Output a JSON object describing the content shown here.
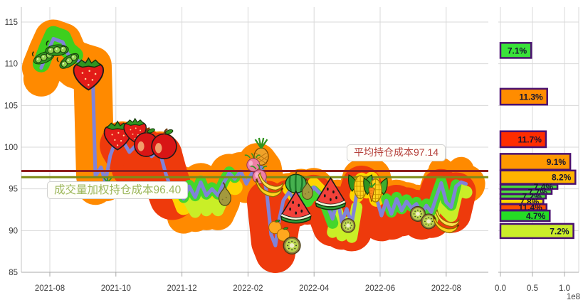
{
  "chart_data": [
    {
      "id": "price-history",
      "type": "line",
      "x_ticks": [
        "2021-08",
        "2021-10",
        "2021-12",
        "2022-02",
        "2022-04",
        "2022-06",
        "2022-08"
      ],
      "y_ticks": [
        85,
        90,
        95,
        100,
        105,
        110,
        115
      ],
      "ylim": [
        83.5,
        116.8
      ],
      "grid": true,
      "series": [
        {
          "name": "price",
          "color": "#8083d8",
          "points": [
            [
              -0.26,
              109.5
            ],
            [
              -0.06,
              111.5
            ],
            [
              0.11,
              113.0
            ],
            [
              0.39,
              112.6
            ],
            [
              0.54,
              111.2
            ],
            [
              0.75,
              110.5
            ],
            [
              1.03,
              110.1
            ],
            [
              1.29,
              109.8
            ],
            [
              1.38,
              96.5
            ],
            [
              1.55,
              97.6
            ],
            [
              1.68,
              95.8
            ],
            [
              1.83,
              99.0
            ],
            [
              1.98,
              100.6
            ],
            [
              2.2,
              100.8
            ],
            [
              2.41,
              99.4
            ],
            [
              2.63,
              100.3
            ],
            [
              2.87,
              100.0
            ],
            [
              3.08,
              98.9
            ],
            [
              3.32,
              99.6
            ],
            [
              3.51,
              96.8
            ],
            [
              3.71,
              94.6
            ],
            [
              3.88,
              95.6
            ],
            [
              4.05,
              93.8
            ],
            [
              4.22,
              95.3
            ],
            [
              4.4,
              94.0
            ],
            [
              4.57,
              95.8
            ],
            [
              4.74,
              94.2
            ],
            [
              4.91,
              95.0
            ],
            [
              5.09,
              94.2
            ],
            [
              5.26,
              95.7
            ],
            [
              5.43,
              96.9
            ],
            [
              5.6,
              96.2
            ],
            [
              5.78,
              97.1
            ],
            [
              5.95,
              95.6
            ],
            [
              6.12,
              96.9
            ],
            [
              6.29,
              98.2
            ],
            [
              6.44,
              97.4
            ],
            [
              6.57,
              94.5
            ],
            [
              6.7,
              89.5
            ],
            [
              6.83,
              88.2
            ],
            [
              6.94,
              91.2
            ],
            [
              7.07,
              93.6
            ],
            [
              7.24,
              94.6
            ],
            [
              7.41,
              93.7
            ],
            [
              7.61,
              95.1
            ],
            [
              7.8,
              94.0
            ],
            [
              7.99,
              95.2
            ],
            [
              8.19,
              94.4
            ],
            [
              8.38,
              93.3
            ],
            [
              8.56,
              91.4
            ],
            [
              8.71,
              93.8
            ],
            [
              8.84,
              91.0
            ],
            [
              8.99,
              92.6
            ],
            [
              9.14,
              90.8
            ],
            [
              9.29,
              94.4
            ],
            [
              9.44,
              96.3
            ],
            [
              9.59,
              94.9
            ],
            [
              9.74,
              96.4
            ],
            [
              9.89,
              93.9
            ],
            [
              10.04,
              91.8
            ],
            [
              10.19,
              93.6
            ],
            [
              10.34,
              92.0
            ],
            [
              10.5,
              93.8
            ],
            [
              10.65,
              92.4
            ],
            [
              10.8,
              93.5
            ],
            [
              10.95,
              92.7
            ],
            [
              11.1,
              93.2
            ],
            [
              11.25,
              92.0
            ],
            [
              11.4,
              93.0
            ],
            [
              11.55,
              92.2
            ],
            [
              11.7,
              94.0
            ],
            [
              11.85,
              95.7
            ],
            [
              12.0,
              93.4
            ],
            [
              12.15,
              92.8
            ],
            [
              12.3,
              95.3
            ],
            [
              12.45,
              95.8
            ],
            [
              12.6,
              95.6
            ]
          ]
        }
      ],
      "cost_lines": [
        {
          "name": "average-holding-cost",
          "label": "平均持仓成本97.14",
          "value": 97.14,
          "line_color": "#8e1f1f",
          "text_color": "#b5413a"
        },
        {
          "name": "vwap-holding-cost",
          "label": "成交量加权持仓成本96.40",
          "value": 96.4,
          "line_color": "#7c8b17",
          "text_color": "#9cb75a"
        }
      ]
    },
    {
      "id": "volume-by-price",
      "type": "bar",
      "orientation": "horizontal",
      "x_ticks": [
        "0.0",
        "0.5",
        "1.0"
      ],
      "x_scale_note": "1e8",
      "border_color": "#4a1070",
      "bars": [
        {
          "label": "7.1%",
          "value": 0.48,
          "p_hi": 112.5,
          "p_lo": 110.7,
          "color": "#3ae23a"
        },
        {
          "label": "11.3%",
          "value": 0.73,
          "p_hi": 107.0,
          "p_lo": 105.1,
          "color": "#ff8c00"
        },
        {
          "label": "11.7%",
          "value": 0.71,
          "p_hi": 101.9,
          "p_lo": 100.0,
          "color": "#ff2d00"
        },
        {
          "label": "9.1%",
          "value": 1.09,
          "p_hi": 99.2,
          "p_lo": 97.3,
          "color": "#ff9800"
        },
        {
          "label": "8.2%",
          "value": 1.17,
          "p_hi": 97.2,
          "p_lo": 95.6,
          "color": "#ffb300"
        },
        {
          "label": "7.4%",
          "value": 0.89,
          "p_hi": 95.5,
          "p_lo": 95.0,
          "color": "#4ade3a"
        },
        {
          "label": "7.7%",
          "value": 0.8,
          "p_hi": 94.9,
          "p_lo": 94.4,
          "color": "#53e03c"
        },
        {
          "label": "7.2%",
          "value": 0.71,
          "p_hi": 94.35,
          "p_lo": 93.85,
          "color": "#4ade3a"
        },
        {
          "label": "7.8%",
          "value": 0.67,
          "p_hi": 93.8,
          "p_lo": 93.2,
          "color": "#ffd900"
        },
        {
          "label": "11.4%",
          "value": 0.72,
          "p_hi": 93.15,
          "p_lo": 92.45,
          "color": "#ff4f00"
        },
        {
          "label": "4.7%",
          "value": 0.77,
          "p_hi": 92.4,
          "p_lo": 91.15,
          "color": "#25dc25"
        },
        {
          "label": "7.2%",
          "value": 1.14,
          "p_hi": 90.8,
          "p_lo": 89.1,
          "color": "#cbec2a"
        }
      ]
    }
  ],
  "decor": {
    "halo_strokes": [
      {
        "color": "#ff8a00",
        "width": 54,
        "dp": 0,
        "m0": -0.3,
        "m1": 12.62
      },
      {
        "color": "#ff8a00",
        "width": 50,
        "dp": -1.3,
        "m0": -0.3,
        "m1": 1.5
      },
      {
        "color": "#ff8a00",
        "width": 40,
        "dp": -1.4,
        "m0": 3.9,
        "m1": 5.4
      },
      {
        "color": "#ff8a00",
        "width": 46,
        "dp": -2.2,
        "m0": 3.9,
        "m1": 5.35
      },
      {
        "color": "#ff8a00",
        "width": 36,
        "dp": 1.5,
        "m0": 11.8,
        "m1": 12.5
      },
      {
        "color": "#ee3a0c",
        "width": 64,
        "dp": -0.6,
        "m0": 2.15,
        "m1": 3.75
      },
      {
        "color": "#ee3a0c",
        "width": 50,
        "dp": -2.0,
        "m0": 2.3,
        "m1": 3.7
      },
      {
        "color": "#ee3a0c",
        "width": 40,
        "dp": -3.1,
        "m0": 2.5,
        "m1": 3.6
      },
      {
        "color": "#ee3a0c",
        "width": 56,
        "dp": -0.9,
        "m0": 6.5,
        "m1": 9.7
      },
      {
        "color": "#ee3a0c",
        "width": 56,
        "dp": -0.7,
        "m0": 9.95,
        "m1": 12.4
      },
      {
        "color": "#ffd400",
        "width": 22,
        "dp": -1.0,
        "m0": 3.85,
        "m1": 5.65
      },
      {
        "color": "#ffd400",
        "width": 18,
        "dp": 0.4,
        "m0": 7.15,
        "m1": 8.35
      },
      {
        "color": "#ffd400",
        "width": 20,
        "dp": -0.2,
        "m0": 9.2,
        "m1": 10.0
      },
      {
        "color": "#c9ef27",
        "width": 16,
        "dp": -1.8,
        "m0": 4.2,
        "m1": 5.3
      },
      {
        "color": "#c9ef27",
        "width": 16,
        "dp": -1.6,
        "m0": 8.5,
        "m1": 9.3
      },
      {
        "color": "#c9ef27",
        "width": 18,
        "dp": -1.0,
        "m0": 11.5,
        "m1": 12.62
      },
      {
        "color": "#3ecf1e",
        "width": 24,
        "dp": 0.5,
        "m0": -0.3,
        "m1": 0.75
      },
      {
        "color": "#44d62c",
        "width": 15,
        "dp": 0.15,
        "m0": 3.95,
        "m1": 5.6
      },
      {
        "color": "#44d62c",
        "width": 16,
        "dp": -0.5,
        "m0": 7.55,
        "m1": 8.65
      },
      {
        "color": "#44d62c",
        "width": 15,
        "dp": 0.2,
        "m0": 10.15,
        "m1": 12.3
      }
    ],
    "fruits": [
      {
        "name": "pea-pod",
        "m": -0.18,
        "p": 110.8,
        "s": 36,
        "rot": -10
      },
      {
        "name": "pea-pod",
        "m": 0.22,
        "p": 111.7,
        "s": 38,
        "rot": 8
      },
      {
        "name": "pea-pod",
        "m": 0.58,
        "p": 110.4,
        "s": 36,
        "rot": -22
      },
      {
        "name": "strawberry",
        "m": 1.17,
        "p": 108.9,
        "s": 56
      },
      {
        "name": "strawberry",
        "m": 2.05,
        "p": 101.5,
        "s": 50
      },
      {
        "name": "strawberry",
        "m": 2.58,
        "p": 102.1,
        "s": 42
      },
      {
        "name": "apple",
        "m": 2.92,
        "p": 100.6,
        "s": 46
      },
      {
        "name": "apple",
        "m": 3.46,
        "p": 100.4,
        "s": 48
      },
      {
        "name": "carrot",
        "m": 1.75,
        "p": 95.2,
        "s": 30
      },
      {
        "name": "pear",
        "m": 5.3,
        "p": 94.3,
        "s": 38
      },
      {
        "name": "pineapple",
        "m": 6.4,
        "p": 99.5,
        "s": 42
      },
      {
        "name": "radish",
        "m": 6.16,
        "p": 98.0,
        "s": 30
      },
      {
        "name": "radish",
        "m": 6.35,
        "p": 96.6,
        "s": 32
      },
      {
        "name": "banana",
        "m": 6.65,
        "p": 95.6,
        "s": 44
      },
      {
        "name": "watermelon-whole",
        "m": 7.45,
        "p": 95.8,
        "s": 40
      },
      {
        "name": "pear",
        "m": 7.8,
        "p": 94.9,
        "s": 34
      },
      {
        "name": "watermelon-slice",
        "m": 7.45,
        "p": 92.8,
        "s": 54
      },
      {
        "name": "watermelon-slice",
        "m": 8.5,
        "p": 94.4,
        "s": 54
      },
      {
        "name": "tangerine",
        "m": 6.82,
        "p": 90.5,
        "s": 28
      },
      {
        "name": "tangerine",
        "m": 7.07,
        "p": 89.6,
        "s": 28
      },
      {
        "name": "kiwi",
        "m": 7.33,
        "p": 88.2,
        "s": 34
      },
      {
        "name": "kiwi",
        "m": 9.03,
        "p": 90.6,
        "s": 28
      },
      {
        "name": "corn",
        "m": 9.4,
        "p": 95.3,
        "s": 46
      },
      {
        "name": "corn",
        "m": 9.86,
        "p": 94.9,
        "s": 46
      },
      {
        "name": "carrot",
        "m": 9.74,
        "p": 94.6,
        "s": 30
      },
      {
        "name": "kiwi",
        "m": 11.14,
        "p": 92.0,
        "s": 30
      },
      {
        "name": "kiwi",
        "m": 11.47,
        "p": 91.1,
        "s": 30
      },
      {
        "name": "banana",
        "m": 12.0,
        "p": 91.2,
        "s": 42
      }
    ]
  }
}
